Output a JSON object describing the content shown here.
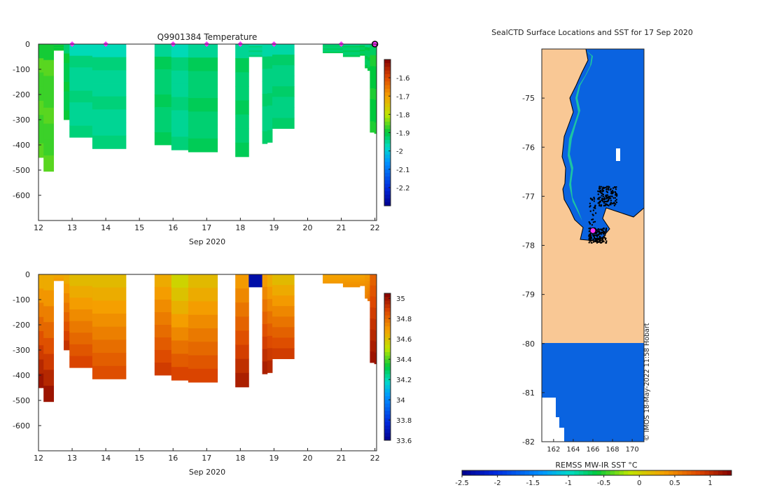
{
  "figure": {
    "left_title": "Q9901384  Temperature",
    "right_title": "SealCTD Surface Locations and SST for 17 Sep 2020",
    "watermark": "© IMOS 18-May-2022 11:58 Hobart",
    "cbar_label": "REMSS MW-IR SST °C"
  },
  "chart_data": [
    {
      "id": "temperature",
      "type": "heatmap",
      "title": "Q9901384  Temperature",
      "xlabel": "Sep 2020",
      "xlim": [
        12,
        22.05
      ],
      "ylim": [
        -700,
        0
      ],
      "xticks": [
        12,
        13,
        14,
        15,
        16,
        17,
        18,
        19,
        20,
        21,
        22
      ],
      "yticks": [
        0,
        -100,
        -200,
        -300,
        -400,
        -500,
        -600
      ],
      "clim": [
        -2.3,
        -1.5
      ],
      "cbar_ticks": [
        -1.6,
        -1.7,
        -1.8,
        -1.9,
        -2,
        -2.1,
        -2.2
      ],
      "markers_x": [
        13,
        14,
        16,
        17,
        18,
        19,
        21
      ],
      "marker_color": "#ff33ff",
      "last_marker_x": 22,
      "profiles": [
        {
          "x0": 12.0,
          "x1": 12.15,
          "depth": 450,
          "v": -1.87
        },
        {
          "x0": 12.15,
          "x1": 12.45,
          "depth": 505,
          "v": -1.87
        },
        {
          "x0": 12.45,
          "x1": 12.75,
          "depth": 25,
          "v": -1.9
        },
        {
          "x0": 12.75,
          "x1": 12.92,
          "depth": 300,
          "v": -1.91
        },
        {
          "x0": 12.92,
          "x1": 13.6,
          "depth": 370,
          "v": -1.95
        },
        {
          "x0": 13.6,
          "x1": 14.6,
          "depth": 415,
          "v": -1.95
        },
        {
          "x0": 15.45,
          "x1": 15.95,
          "depth": 400,
          "v": -1.93
        },
        {
          "x0": 15.95,
          "x1": 16.45,
          "depth": 420,
          "v": -1.95
        },
        {
          "x0": 16.45,
          "x1": 17.32,
          "depth": 428,
          "v": -1.93
        },
        {
          "x0": 17.85,
          "x1": 18.25,
          "depth": 447,
          "v": -1.93
        },
        {
          "x0": 18.25,
          "x1": 18.65,
          "depth": 50,
          "v": -1.95
        },
        {
          "x0": 18.65,
          "x1": 18.8,
          "depth": 395,
          "v": -1.94
        },
        {
          "x0": 18.8,
          "x1": 18.95,
          "depth": 390,
          "v": -1.94
        },
        {
          "x0": 18.95,
          "x1": 19.6,
          "depth": 335,
          "v": -1.94
        },
        {
          "x0": 20.45,
          "x1": 21.05,
          "depth": 35,
          "v": -1.93
        },
        {
          "x0": 21.05,
          "x1": 21.55,
          "depth": 50,
          "v": -1.93
        },
        {
          "x0": 21.55,
          "x1": 21.7,
          "depth": 45,
          "v": -1.92
        },
        {
          "x0": 21.7,
          "x1": 21.78,
          "depth": 95,
          "v": -1.92
        },
        {
          "x0": 21.78,
          "x1": 21.85,
          "depth": 105,
          "v": -1.92
        },
        {
          "x0": 21.85,
          "x1": 21.98,
          "depth": 350,
          "v": -1.9
        },
        {
          "x0": 21.98,
          "x1": 22.05,
          "depth": 355,
          "v": -1.9
        }
      ]
    },
    {
      "id": "salinity",
      "type": "heatmap",
      "title": "",
      "xlabel": "Sep 2020",
      "xlim": [
        12,
        22.05
      ],
      "ylim": [
        -700,
        0
      ],
      "xticks": [
        12,
        13,
        14,
        15,
        16,
        17,
        18,
        19,
        20,
        21,
        22
      ],
      "yticks": [
        0,
        -100,
        -200,
        -300,
        -400,
        -500,
        -600
      ],
      "clim": [
        33.6,
        35.05
      ],
      "cbar_ticks": [
        35,
        34.8,
        34.6,
        34.4,
        34.2,
        34,
        33.8,
        33.6
      ],
      "profiles": [
        {
          "x0": 12.0,
          "x1": 12.15,
          "depth": 450,
          "s0": 34.66,
          "s1": 35.0
        },
        {
          "x0": 12.15,
          "x1": 12.45,
          "depth": 505,
          "s0": 34.66,
          "s1": 35.0
        },
        {
          "x0": 12.45,
          "x1": 12.75,
          "depth": 25,
          "s0": 34.66,
          "s1": 34.7
        },
        {
          "x0": 12.75,
          "x1": 12.92,
          "depth": 300,
          "s0": 34.66,
          "s1": 34.92
        },
        {
          "x0": 12.92,
          "x1": 13.6,
          "depth": 370,
          "s0": 34.62,
          "s1": 34.88
        },
        {
          "x0": 13.6,
          "x1": 14.6,
          "depth": 415,
          "s0": 34.62,
          "s1": 34.86
        },
        {
          "x0": 15.45,
          "x1": 15.95,
          "depth": 400,
          "s0": 34.66,
          "s1": 34.9
        },
        {
          "x0": 15.95,
          "x1": 16.45,
          "depth": 420,
          "s0": 34.55,
          "s1": 34.88
        },
        {
          "x0": 16.45,
          "x1": 17.32,
          "depth": 428,
          "s0": 34.62,
          "s1": 34.88
        },
        {
          "x0": 17.85,
          "x1": 18.25,
          "depth": 447,
          "s0": 34.7,
          "s1": 34.97
        },
        {
          "x0": 18.25,
          "x1": 18.65,
          "depth": 50,
          "s0": 33.66,
          "s1": 33.66
        },
        {
          "x0": 18.65,
          "x1": 18.8,
          "depth": 395,
          "s0": 34.7,
          "s1": 34.97
        },
        {
          "x0": 18.8,
          "x1": 18.95,
          "depth": 390,
          "s0": 34.66,
          "s1": 34.95
        },
        {
          "x0": 18.95,
          "x1": 19.6,
          "depth": 335,
          "s0": 34.62,
          "s1": 34.9
        },
        {
          "x0": 20.45,
          "x1": 21.05,
          "depth": 35,
          "s0": 34.68,
          "s1": 34.7
        },
        {
          "x0": 21.05,
          "x1": 21.55,
          "depth": 50,
          "s0": 34.68,
          "s1": 34.72
        },
        {
          "x0": 21.55,
          "x1": 21.7,
          "depth": 45,
          "s0": 34.68,
          "s1": 34.72
        },
        {
          "x0": 21.7,
          "x1": 21.78,
          "depth": 95,
          "s0": 34.7,
          "s1": 34.75
        },
        {
          "x0": 21.78,
          "x1": 21.85,
          "depth": 105,
          "s0": 34.7,
          "s1": 34.78
        },
        {
          "x0": 21.85,
          "x1": 21.98,
          "depth": 350,
          "s0": 34.82,
          "s1": 35.0
        },
        {
          "x0": 21.98,
          "x1": 22.05,
          "depth": 355,
          "s0": 34.82,
          "s1": 35.0
        }
      ]
    },
    {
      "id": "sst_map",
      "type": "heatmap",
      "title": "SealCTD Surface Locations and SST for 17 Sep 2020",
      "xlabel": "",
      "xlim": [
        160.8,
        171.2
      ],
      "ylim": [
        -82,
        -74
      ],
      "xticks": [
        162,
        164,
        166,
        168,
        170
      ],
      "yticks": [
        -75,
        -76,
        -77,
        -78,
        -79,
        -80,
        -81,
        -82
      ],
      "land_color": "#f9c895",
      "ocean_color": "#0a63e0",
      "coast_shelf_color": "#1ec8a0",
      "cbar_label": "REMSS MW-IR SST °C",
      "cbar_ticks": [
        -2.5,
        -2,
        -1.5,
        -1,
        -0.5,
        0,
        0.5,
        1
      ],
      "clim": [
        -2.5,
        1.3
      ],
      "current_location": [
        166.0,
        -77.7
      ],
      "location_clusters": [
        {
          "lon": 167.5,
          "lat": -77.0,
          "spread": [
            1.0,
            0.2
          ],
          "count": 140
        },
        {
          "lon": 166.5,
          "lat": -77.8,
          "spread": [
            0.9,
            0.15
          ],
          "count": 160
        },
        {
          "lon": 166.0,
          "lat": -77.4,
          "spread": [
            0.4,
            0.4
          ],
          "count": 40
        }
      ]
    }
  ]
}
